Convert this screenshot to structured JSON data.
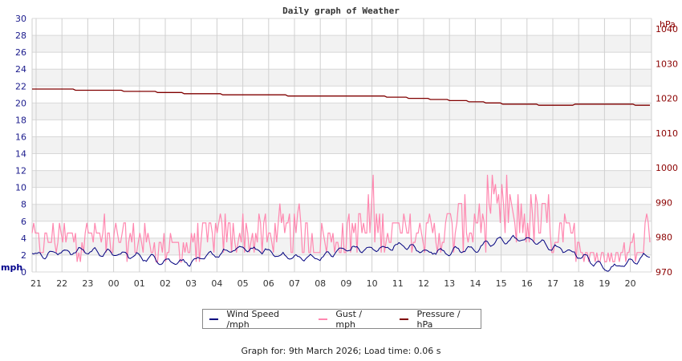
{
  "chart_data": {
    "type": "line",
    "title": "Daily graph of Weather",
    "left_axis": {
      "label": "mph",
      "ylim": [
        0,
        30
      ],
      "ticks": [
        0,
        2,
        4,
        6,
        8,
        10,
        12,
        14,
        16,
        18,
        20,
        22,
        24,
        26,
        28,
        30
      ]
    },
    "right_axis": {
      "label": "hPa",
      "ylim": [
        970,
        1043
      ],
      "ticks": [
        970,
        980,
        990,
        1000,
        1010,
        1020,
        1030,
        1040
      ]
    },
    "x_tick_labels": [
      "21",
      "22",
      "23",
      "00",
      "01",
      "02",
      "03",
      "04",
      "05",
      "06",
      "07",
      "08",
      "09",
      "10",
      "11",
      "12",
      "13",
      "14",
      "15",
      "16",
      "17",
      "18",
      "19",
      "20"
    ],
    "grid": true,
    "legend_position": "bottom",
    "series": [
      {
        "name": "Wind Speed /mph",
        "axis": "left",
        "color": "#00007f",
        "hourly_values": [
          2.0,
          2.4,
          2.5,
          2.1,
          1.8,
          1.3,
          1.2,
          2.2,
          2.8,
          2.3,
          1.6,
          1.8,
          2.8,
          2.6,
          3.2,
          2.4,
          2.5,
          2.8,
          3.8,
          3.9,
          2.8,
          2.0,
          0.3,
          1.2,
          2.5
        ]
      },
      {
        "name": "Gust / mph",
        "axis": "left",
        "color": "#ff88b0",
        "hourly_values": [
          3.5,
          3.8,
          4.2,
          3.8,
          3.6,
          2.8,
          3.0,
          4.2,
          4.5,
          4.0,
          4.5,
          3.5,
          4.2,
          5.5,
          4.5,
          4.2,
          5.0,
          5.8,
          6.5,
          6.2,
          5.0,
          3.5,
          1.2,
          3.0,
          6.5
        ],
        "peak": 11.5
      },
      {
        "name": "Pressure / hPa",
        "axis": "right",
        "color": "#800000",
        "hourly_values": [
          1022.8,
          1022.6,
          1022.4,
          1022.2,
          1022.1,
          1021.7,
          1021.4,
          1021.2,
          1021.0,
          1020.9,
          1020.8,
          1020.7,
          1020.8,
          1020.7,
          1020.3,
          1019.9,
          1019.5,
          1019.0,
          1018.5,
          1018.3,
          1018.0,
          1018.2,
          1018.3,
          1018.2,
          1018.0
        ]
      }
    ]
  },
  "legend": {
    "wind": "Wind Speed /mph",
    "gust": "Gust / mph",
    "pressure": "Pressure / hPa"
  },
  "footer": "Graph for: 9th March 2026; Load time: 0.06 s"
}
